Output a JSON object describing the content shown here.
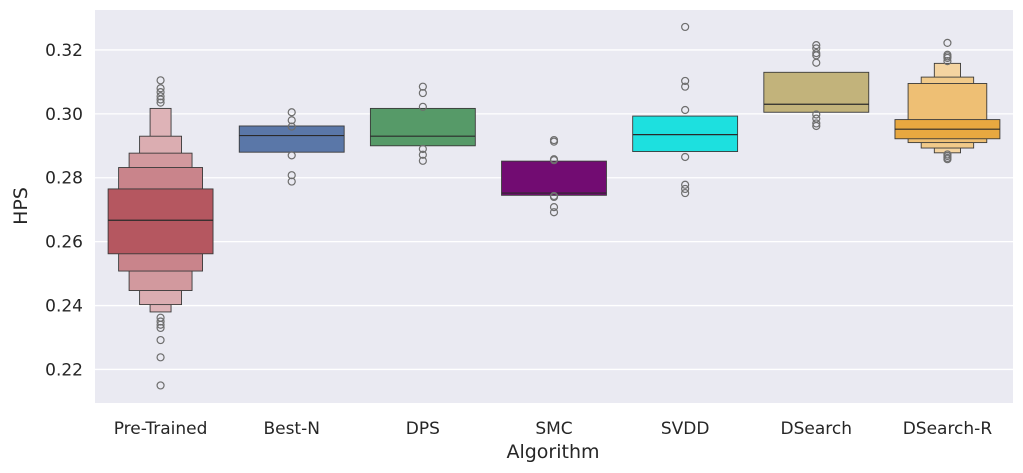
{
  "chart_data": {
    "type": "boxen",
    "title": "",
    "xlabel": "Algorithm",
    "ylabel": "HPS",
    "ylim": [
      0.2095,
      0.3325
    ],
    "yticks": [
      0.22,
      0.24,
      0.26,
      0.28,
      0.3,
      0.32
    ],
    "ytick_labels": [
      "0.22",
      "0.24",
      "0.26",
      "0.28",
      "0.30",
      "0.32"
    ],
    "grid": true,
    "categories": [
      "Pre-Trained",
      "Best-N",
      "DPS",
      "SMC",
      "SVDD",
      "DSearch",
      "DSearch-R"
    ],
    "series": [
      {
        "name": "Pre-Trained",
        "color": "#b55760",
        "median": 0.2667,
        "levels": [
          [
            0.2562,
            0.2765
          ],
          [
            0.2508,
            0.2832
          ],
          [
            0.2447,
            0.2877
          ],
          [
            0.2403,
            0.293
          ],
          [
            0.238,
            0.3017
          ]
        ],
        "outliers": [
          0.3105,
          0.308,
          0.3068,
          0.3055,
          0.3045,
          0.3035,
          0.2362,
          0.235,
          0.234,
          0.233,
          0.2292,
          0.2238,
          0.215
        ]
      },
      {
        "name": "Best-N",
        "color": "#5a77a8",
        "median": 0.2932,
        "levels": [
          [
            0.288,
            0.2962
          ]
        ],
        "outliers": [
          0.3005,
          0.298,
          0.296,
          0.287,
          0.2808,
          0.2788
        ]
      },
      {
        "name": "DPS",
        "color": "#569a68",
        "median": 0.293,
        "levels": [
          [
            0.29,
            0.3017
          ]
        ],
        "outliers": [
          0.3085,
          0.3065,
          0.3022,
          0.289,
          0.2872,
          0.2853
        ]
      },
      {
        "name": "SMC",
        "color": "#720c72",
        "median": 0.2752,
        "levels": [
          [
            0.2745,
            0.2852
          ]
        ],
        "outliers": [
          0.2918,
          0.2913,
          0.2858,
          0.2855,
          0.2743,
          0.274,
          0.2708,
          0.2692
        ]
      },
      {
        "name": "SVDD",
        "color": "#1de0df",
        "median": 0.2935,
        "levels": [
          [
            0.2882,
            0.2993
          ]
        ],
        "outliers": [
          0.3272,
          0.3103,
          0.3085,
          0.3012,
          0.2865,
          0.2778,
          0.2765,
          0.2752
        ]
      },
      {
        "name": "DSearch",
        "color": "#c2b37b",
        "median": 0.303,
        "levels": [
          [
            0.3005,
            0.313
          ]
        ],
        "outliers": [
          0.3215,
          0.3205,
          0.319,
          0.3183,
          0.316,
          0.2998,
          0.2985,
          0.297,
          0.2962
        ]
      },
      {
        "name": "DSearch-R",
        "color": "#e8a840",
        "median": 0.2952,
        "levels": [
          [
            0.2922,
            0.2982
          ],
          [
            0.291,
            0.3095
          ],
          [
            0.2893,
            0.3115
          ],
          [
            0.2878,
            0.3158
          ]
        ],
        "outliers": [
          0.3222,
          0.3185,
          0.318,
          0.3175,
          0.3165,
          0.2873,
          0.2868,
          0.2862,
          0.2858
        ]
      }
    ]
  }
}
